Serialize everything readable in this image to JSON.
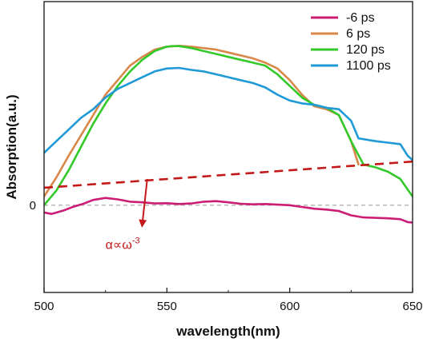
{
  "chart_data": {
    "type": "line",
    "xlabel": "wavelength(nm)",
    "ylabel": "Absorption(a.u.)",
    "xlim": [
      500,
      650
    ],
    "ylim": [
      -0.3,
      0.7
    ],
    "x_ticks": [
      500,
      550,
      600,
      650
    ],
    "x_tick_labels": [
      "500",
      "550",
      "600",
      "650"
    ],
    "y_ticks": [
      0
    ],
    "y_tick_labels": [
      "0"
    ],
    "grid": false,
    "legend_position": "top-right",
    "zero_line": {
      "y": 0,
      "style": "dashed",
      "color": "#a0a0a0"
    },
    "series": [
      {
        "name": "-6 ps",
        "color": "#cc1c74",
        "points": [
          [
            500,
            -0.025
          ],
          [
            503,
            -0.03
          ],
          [
            508,
            -0.018
          ],
          [
            512,
            -0.005
          ],
          [
            516,
            0.005
          ],
          [
            520,
            0.018
          ],
          [
            525,
            0.025
          ],
          [
            530,
            0.02
          ],
          [
            535,
            0.012
          ],
          [
            540,
            0.01
          ],
          [
            545,
            0.006
          ],
          [
            550,
            0.007
          ],
          [
            555,
            0.004
          ],
          [
            560,
            0.006
          ],
          [
            565,
            0.012
          ],
          [
            570,
            0.014
          ],
          [
            575,
            0.01
          ],
          [
            580,
            0.005
          ],
          [
            585,
            0.003
          ],
          [
            590,
            0.004
          ],
          [
            595,
            0.002
          ],
          [
            600,
            0.0
          ],
          [
            605,
            -0.006
          ],
          [
            610,
            -0.012
          ],
          [
            615,
            -0.015
          ],
          [
            620,
            -0.02
          ],
          [
            625,
            -0.035
          ],
          [
            630,
            -0.042
          ],
          [
            640,
            -0.045
          ],
          [
            645,
            -0.048
          ],
          [
            648,
            -0.058
          ],
          [
            650,
            -0.06
          ]
        ]
      },
      {
        "name": "6 ps",
        "color": "#d8884a",
        "points": [
          [
            500,
            0.03
          ],
          [
            505,
            0.095
          ],
          [
            510,
            0.17
          ],
          [
            515,
            0.24
          ],
          [
            520,
            0.31
          ],
          [
            525,
            0.38
          ],
          [
            530,
            0.43
          ],
          [
            535,
            0.48
          ],
          [
            540,
            0.51
          ],
          [
            545,
            0.535
          ],
          [
            550,
            0.545
          ],
          [
            555,
            0.548
          ],
          [
            560,
            0.545
          ],
          [
            565,
            0.54
          ],
          [
            570,
            0.535
          ],
          [
            575,
            0.525
          ],
          [
            580,
            0.515
          ],
          [
            585,
            0.505
          ],
          [
            590,
            0.49
          ],
          [
            595,
            0.47
          ],
          [
            600,
            0.43
          ],
          [
            605,
            0.38
          ],
          [
            610,
            0.34
          ],
          [
            615,
            0.33
          ],
          [
            620,
            0.31
          ],
          [
            625,
            0.22
          ],
          [
            628,
            0.14
          ]
        ]
      },
      {
        "name": "120 ps",
        "color": "#33c92a",
        "points": [
          [
            500,
            0.0
          ],
          [
            505,
            0.05
          ],
          [
            510,
            0.12
          ],
          [
            515,
            0.2
          ],
          [
            520,
            0.28
          ],
          [
            525,
            0.35
          ],
          [
            530,
            0.41
          ],
          [
            535,
            0.46
          ],
          [
            540,
            0.5
          ],
          [
            545,
            0.53
          ],
          [
            550,
            0.545
          ],
          [
            552,
            0.547
          ],
          [
            555,
            0.547
          ],
          [
            560,
            0.54
          ],
          [
            565,
            0.53
          ],
          [
            570,
            0.52
          ],
          [
            575,
            0.51
          ],
          [
            580,
            0.5
          ],
          [
            585,
            0.49
          ],
          [
            590,
            0.48
          ],
          [
            595,
            0.45
          ],
          [
            600,
            0.41
          ],
          [
            605,
            0.37
          ],
          [
            610,
            0.345
          ],
          [
            615,
            0.335
          ],
          [
            620,
            0.31
          ],
          [
            625,
            0.22
          ],
          [
            630,
            0.14
          ],
          [
            635,
            0.13
          ],
          [
            640,
            0.115
          ],
          [
            645,
            0.09
          ],
          [
            650,
            0.03
          ]
        ]
      },
      {
        "name": "1100 ps",
        "color": "#1f9ad6",
        "points": [
          [
            500,
            0.18
          ],
          [
            505,
            0.22
          ],
          [
            510,
            0.26
          ],
          [
            515,
            0.3
          ],
          [
            520,
            0.33
          ],
          [
            525,
            0.37
          ],
          [
            530,
            0.4
          ],
          [
            535,
            0.42
          ],
          [
            540,
            0.44
          ],
          [
            545,
            0.46
          ],
          [
            550,
            0.47
          ],
          [
            555,
            0.472
          ],
          [
            560,
            0.465
          ],
          [
            565,
            0.46
          ],
          [
            570,
            0.45
          ],
          [
            575,
            0.44
          ],
          [
            580,
            0.43
          ],
          [
            585,
            0.42
          ],
          [
            590,
            0.405
          ],
          [
            595,
            0.38
          ],
          [
            600,
            0.36
          ],
          [
            605,
            0.35
          ],
          [
            610,
            0.345
          ],
          [
            615,
            0.335
          ],
          [
            620,
            0.33
          ],
          [
            625,
            0.29
          ],
          [
            628,
            0.23
          ],
          [
            635,
            0.22
          ],
          [
            640,
            0.215
          ],
          [
            645,
            0.21
          ],
          [
            648,
            0.17
          ],
          [
            650,
            0.155
          ]
        ]
      }
    ],
    "annotations": [
      {
        "type": "dashed-line",
        "color": "#c41818",
        "from": [
          500,
          0.06
        ],
        "to": [
          650,
          0.15
        ]
      },
      {
        "type": "arrow",
        "color": "#c41818",
        "from": [
          542,
          0.09
        ],
        "to": [
          540,
          -0.08
        ]
      },
      {
        "type": "text",
        "color": "#c41818",
        "text_base": "α∝ω",
        "text_sup": "-3",
        "at": [
          532,
          -0.15
        ]
      }
    ]
  }
}
